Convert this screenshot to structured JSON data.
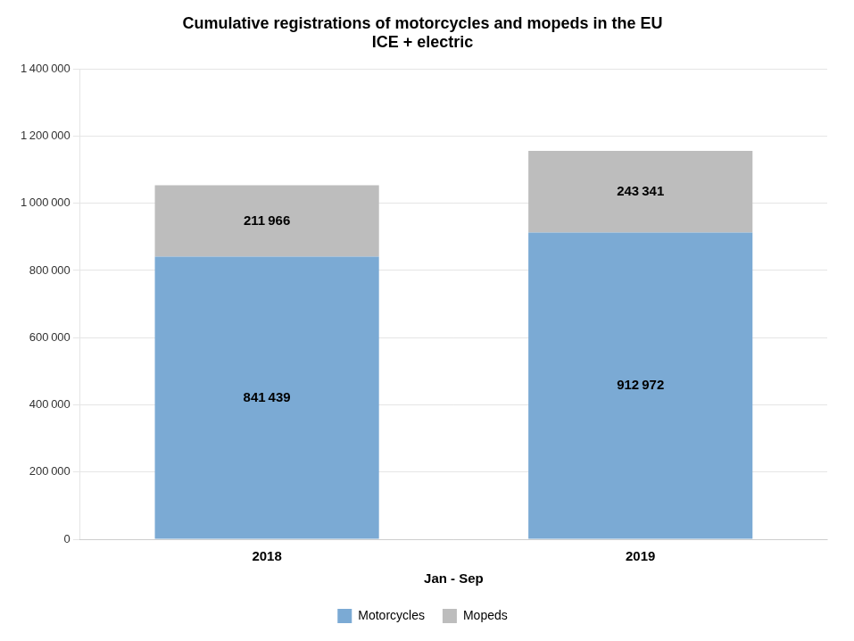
{
  "chart_data": {
    "type": "bar",
    "title": "Cumulative registrations of motorcycles and mopeds in the EU",
    "subtitle": "ICE + electric",
    "x_label": "Jan - Sep",
    "categories": [
      "2018",
      "2019"
    ],
    "series": [
      {
        "name": "Motorcycles",
        "color": "#7baad4",
        "values": [
          841439,
          912972
        ],
        "value_labels": [
          "841 439",
          "912 972"
        ]
      },
      {
        "name": "Mopeds",
        "color": "#bdbdbd",
        "values": [
          211966,
          243341
        ],
        "value_labels": [
          "211 966",
          "243 341"
        ]
      }
    ],
    "stacked": true,
    "data_labels": true,
    "ylim": [
      0,
      1400000
    ],
    "yticks": [
      0,
      {
        "value": 200000,
        "label": "200 000"
      },
      {
        "value": 400000,
        "label": "400 000"
      },
      {
        "value": 600000,
        "label": "600 000"
      },
      {
        "value": 800000,
        "label": "800 000"
      },
      {
        "value": 1000000,
        "label": "1 000 000"
      },
      {
        "value": 1200000,
        "label": "1 200 000"
      },
      {
        "value": 1400000,
        "label": "1 400 000"
      }
    ],
    "grid": true,
    "legend": "bottom"
  }
}
